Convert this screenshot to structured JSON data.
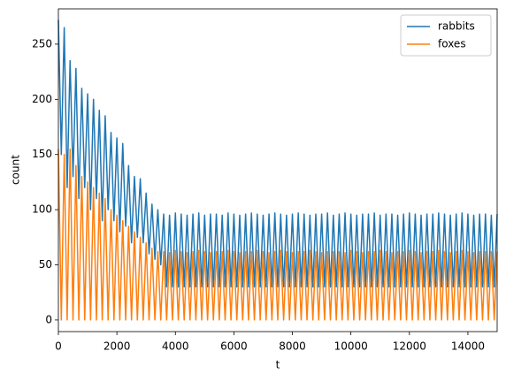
{
  "chart_data": {
    "type": "line",
    "xlabel": "t",
    "ylabel": "count",
    "xlim": [
      0,
      15000
    ],
    "xticks": [
      0,
      2000,
      4000,
      6000,
      8000,
      10000,
      12000,
      14000
    ],
    "ylim": [
      -10.5,
      282
    ],
    "yticks": [
      0,
      50,
      100,
      150,
      200,
      250
    ],
    "legend": "upper right",
    "x": [
      0,
      100,
      200,
      300,
      400,
      500,
      600,
      700,
      800,
      900,
      1000,
      1100,
      1200,
      1300,
      1400,
      1500,
      1600,
      1700,
      1800,
      1900,
      2000,
      2100,
      2200,
      2300,
      2400,
      2500,
      2600,
      2700,
      2800,
      2900,
      3000,
      3100,
      3200,
      3300,
      3400,
      3500,
      3600,
      3700,
      3800,
      3900,
      4000,
      4100,
      4200,
      4300,
      4400,
      4500,
      4600,
      4700,
      4800,
      4900,
      5000,
      5100,
      5200,
      5300,
      5400,
      5500,
      5600,
      5700,
      5800,
      5900,
      6000,
      6100,
      6200,
      6300,
      6400,
      6500,
      6600,
      6700,
      6800,
      6900,
      7000,
      7100,
      7200,
      7300,
      7400,
      7500,
      7600,
      7700,
      7800,
      7900,
      8000,
      8100,
      8200,
      8300,
      8400,
      8500,
      8600,
      8700,
      8800,
      8900,
      9000,
      9100,
      9200,
      9300,
      9400,
      9500,
      9600,
      9700,
      9800,
      9900,
      10000,
      10100,
      10200,
      10300,
      10400,
      10500,
      10600,
      10700,
      10800,
      10900,
      11000,
      11100,
      11200,
      11300,
      11400,
      11500,
      11600,
      11700,
      11800,
      11900,
      12000,
      12100,
      12200,
      12300,
      12400,
      12500,
      12600,
      12700,
      12800,
      12900,
      13000,
      13100,
      13200,
      13300,
      13400,
      13500,
      13600,
      13700,
      13800,
      13900,
      14000,
      14100,
      14200,
      14300,
      14400,
      14500,
      14600,
      14700,
      14800,
      14900,
      15000
    ],
    "series": [
      {
        "name": "rabbits",
        "color": "#1f77b4",
        "values": [
          272,
          150,
          265,
          120,
          235,
          130,
          228,
          110,
          210,
          120,
          205,
          100,
          200,
          110,
          190,
          90,
          185,
          100,
          170,
          90,
          165,
          80,
          160,
          85,
          140,
          70,
          130,
          75,
          128,
          70,
          115,
          60,
          105,
          55,
          100,
          50,
          96,
          30,
          95,
          30,
          97,
          30,
          96,
          30,
          95,
          30,
          96,
          30,
          97,
          30,
          95,
          30,
          96,
          30,
          96,
          30,
          95,
          30,
          97,
          30,
          96,
          30,
          95,
          30,
          96,
          30,
          97,
          30,
          96,
          30,
          95,
          30,
          96,
          30,
          97,
          30,
          96,
          30,
          95,
          30,
          96,
          30,
          97,
          30,
          96,
          30,
          95,
          30,
          96,
          30,
          96,
          30,
          97,
          30,
          95,
          30,
          96,
          30,
          97,
          30,
          96,
          30,
          95,
          30,
          96,
          30,
          96,
          30,
          97,
          30,
          95,
          30,
          96,
          30,
          96,
          30,
          95,
          30,
          96,
          30,
          97,
          30,
          96,
          30,
          95,
          30,
          96,
          30,
          96,
          30,
          97,
          30,
          96,
          30,
          95,
          30,
          96,
          30,
          97,
          30,
          96,
          30,
          95,
          30,
          96,
          30,
          96,
          30,
          95,
          30,
          96
        ]
      },
      {
        "name": "foxes",
        "color": "#ff7f0e",
        "values": [
          155,
          0,
          150,
          0,
          155,
          0,
          140,
          0,
          130,
          0,
          125,
          0,
          120,
          0,
          115,
          0,
          110,
          0,
          100,
          0,
          95,
          0,
          90,
          0,
          85,
          0,
          80,
          0,
          75,
          0,
          70,
          0,
          65,
          0,
          62,
          0,
          62,
          0,
          61,
          0,
          63,
          0,
          62,
          0,
          61,
          0,
          62,
          0,
          63,
          0,
          62,
          0,
          61,
          0,
          62,
          0,
          62,
          0,
          63,
          0,
          62,
          0,
          61,
          0,
          62,
          0,
          62,
          0,
          63,
          0,
          62,
          0,
          61,
          0,
          62,
          0,
          63,
          0,
          62,
          0,
          61,
          0,
          62,
          0,
          62,
          0,
          63,
          0,
          62,
          0,
          61,
          0,
          62,
          0,
          62,
          0,
          62,
          0,
          61,
          0,
          63,
          0,
          62,
          0,
          61,
          0,
          62,
          0,
          62,
          0,
          63,
          0,
          62,
          0,
          61,
          0,
          62,
          0,
          62,
          0,
          63,
          0,
          62,
          0,
          61,
          0,
          62,
          0,
          62,
          0,
          63,
          0,
          62,
          0,
          61,
          0,
          62,
          0,
          63,
          0,
          62,
          0,
          61,
          0,
          62,
          0,
          62,
          0,
          62,
          0,
          62
        ]
      }
    ]
  }
}
